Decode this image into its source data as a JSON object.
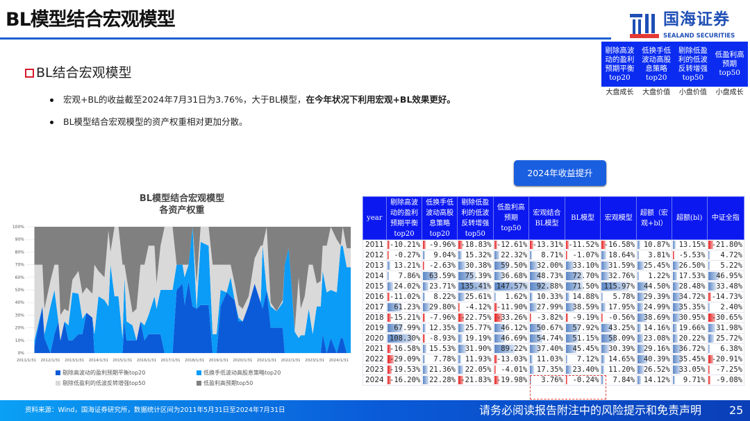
{
  "title": "BL模型结合宏观模型",
  "logo": {
    "cn": "国海证券",
    "en": "SEALAND SECURITIES"
  },
  "style_box": {
    "items": [
      "剔除高波动的盈利预期平衡top20",
      "低换手低波动高股息策略top20",
      "剔除低盈利的低波反转增强top50",
      "低盈利高预期top50"
    ],
    "labels": [
      "大盘成长",
      "大盘价值",
      "小盘价值",
      "小盘成长"
    ]
  },
  "section": "BL结合宏观模型",
  "bullets": {
    "b1_normal": "宏观+BL的收益截至2024年7月31日为3.76%，大于BL模型，",
    "b1_bold": "在今年状况下利用宏观+BL效果更好。",
    "b2": "BL模型结合宏观模型的资产权重相对更加分散。"
  },
  "boost_button": "2024年收益提升",
  "colors": {
    "dark_blue": "#0b5bd8",
    "light_blue": "#0a9cf7",
    "light_gray": "#d9d9d9",
    "gray": "#808080",
    "header_blue": "#0b18f0",
    "neg_red": "#e51c1c"
  },
  "table": {
    "headers": [
      "year",
      "剔除高波动的盈利预期平衡top20",
      "低换手低波动高股息策略top20",
      "剔除低盈利的低波反转增强top50",
      "低盈利高预期top50",
      "宏观结合BL模型",
      "BL模型",
      "宏观模型",
      "超额（宏观+bl）",
      "超额(bl)",
      "中证全指"
    ],
    "rows": [
      [
        "2011",
        -10.21,
        -9.96,
        -18.83,
        -12.61,
        -13.31,
        -11.52,
        -16.58,
        10.87,
        13.15,
        -21.8
      ],
      [
        "2012",
        -0.27,
        9.04,
        15.32,
        22.32,
        8.71,
        -1.07,
        18.64,
        3.81,
        -5.53,
        4.72
      ],
      [
        "2013",
        13.21,
        -2.63,
        30.38,
        59.5,
        32.0,
        33.1,
        31.59,
        25.45,
        26.5,
        5.22
      ],
      [
        "2014",
        7.86,
        63.59,
        75.39,
        36.68,
        48.73,
        72.7,
        32.76,
        1.22,
        17.53,
        46.95
      ],
      [
        "2015",
        24.02,
        23.71,
        135.41,
        147.57,
        92.88,
        71.5,
        115.97,
        44.5,
        28.48,
        33.48
      ],
      [
        "2016",
        -11.02,
        8.22,
        25.61,
        1.62,
        10.33,
        14.88,
        5.78,
        29.39,
        34.72,
        -14.73
      ],
      [
        "2017",
        61.23,
        29.8,
        -4.12,
        -11.9,
        27.99,
        38.59,
        17.95,
        24.99,
        35.35,
        2.4
      ],
      [
        "2018",
        -15.21,
        -7.96,
        -22.75,
        -33.26,
        -3.82,
        -9.19,
        -0.56,
        38.69,
        30.95,
        -30.65
      ],
      [
        "2019",
        67.99,
        12.35,
        25.77,
        46.12,
        50.67,
        57.92,
        43.25,
        14.16,
        19.66,
        31.98
      ],
      [
        "2020",
        108.3,
        -8.93,
        19.19,
        46.69,
        54.74,
        51.15,
        58.09,
        23.08,
        20.22,
        25.72
      ],
      [
        "2021",
        -16.58,
        15.53,
        31.9,
        89.22,
        37.4,
        45.45,
        30.39,
        29.16,
        36.72,
        6.38
      ],
      [
        "2022",
        -29.09,
        7.78,
        11.93,
        -13.03,
        11.03,
        7.12,
        14.65,
        40.39,
        35.45,
        -20.91
      ],
      [
        "2023",
        -19.53,
        21.36,
        22.05,
        -4.01,
        17.35,
        23.4,
        11.2,
        26.52,
        33.05,
        -7.25
      ],
      [
        "2024",
        -16.2,
        22.28,
        -21.83,
        -19.98,
        3.76,
        -0.24,
        7.84,
        14.12,
        9.71,
        -9.08
      ]
    ]
  },
  "chart_data": {
    "type": "area",
    "stacked": "percent",
    "title": "BL模型结合宏观模型",
    "subtitle": "各资产权重",
    "ylim": [
      0,
      100
    ],
    "yticks": [
      "0%",
      "10%",
      "20%",
      "30%",
      "40%",
      "50%",
      "60%",
      "70%",
      "80%",
      "90%",
      "100%"
    ],
    "xticks": [
      "2011/1/31",
      "2012/1/31",
      "2013/1/31",
      "2014/1/31",
      "2015/1/31",
      "2016/1/31",
      "2017/1/31",
      "2018/1/31",
      "2019/1/31",
      "2020/1/31",
      "2021/1/31",
      "2022/1/31",
      "2023/1/31",
      "2024/1/31"
    ],
    "legend_position": "bottom",
    "x": [
      "2011-05",
      "2011-09",
      "2011-10",
      "2012-01",
      "2012-03",
      "2012-05",
      "2012-06",
      "2012-08",
      "2012-10",
      "2012-12",
      "2013-03",
      "2013-05",
      "2013-07",
      "2013-10",
      "2013-11",
      "2014-01",
      "2014-04",
      "2014-06",
      "2014-07",
      "2014-09",
      "2014-11",
      "2015-01",
      "2015-02",
      "2015-03",
      "2015-06",
      "2015-08",
      "2015-10",
      "2015-12",
      "2016-02",
      "2016-05",
      "2016-06",
      "2016-08",
      "2016-10",
      "2017-01",
      "2017-02",
      "2017-04",
      "2017-07",
      "2017-08",
      "2017-10",
      "2017-12",
      "2018-02",
      "2018-04",
      "2018-08",
      "2018-10",
      "2018-12",
      "2019-02",
      "2019-05",
      "2019-07",
      "2019-09",
      "2019-11",
      "2020-01",
      "2020-04",
      "2020-07",
      "2020-10",
      "2020-11",
      "2021-01",
      "2021-03",
      "2021-06",
      "2021-09",
      "2021-10",
      "2021-12",
      "2022-01",
      "2022-03",
      "2022-05",
      "2022-06",
      "2022-08",
      "2022-10",
      "2022-12",
      "2023-02",
      "2023-04",
      "2023-05",
      "2023-07",
      "2023-09",
      "2023-12",
      "2024-02",
      "2024-03",
      "2024-05",
      "2024-07"
    ],
    "series": [
      {
        "name": "剔除高波动的盈利预期平衡top20",
        "color": "#0b5bd8",
        "values": [
          5,
          37,
          12,
          0,
          15,
          25,
          10,
          25,
          10,
          10,
          15,
          15,
          32,
          28,
          0,
          0,
          0,
          0,
          0,
          0,
          0,
          0,
          25,
          10,
          10,
          10,
          25,
          10,
          15,
          15,
          15,
          15,
          0,
          0,
          0,
          50,
          55,
          38,
          57,
          37,
          35,
          38,
          38,
          0,
          0,
          37,
          48,
          45,
          42,
          25,
          25,
          38,
          55,
          40,
          35,
          50,
          20,
          20,
          20,
          0,
          0,
          0,
          0,
          0,
          0,
          0,
          0,
          0,
          0,
          0,
          15,
          0,
          12,
          0,
          12,
          12,
          0,
          0
        ]
      },
      {
        "name": "低换手低波动高股息策略top20",
        "color": "#0a9cf7",
        "values": [
          5,
          0,
          3,
          37,
          35,
          0,
          0,
          0,
          12,
          38,
          32,
          12,
          0,
          0,
          15,
          45,
          42,
          37,
          70,
          45,
          45,
          12,
          35,
          15,
          12,
          0,
          0,
          12,
          15,
          30,
          20,
          35,
          50,
          50,
          50,
          20,
          15,
          22,
          13,
          63,
          0,
          50,
          47,
          15,
          15,
          13,
          0,
          15,
          0,
          3,
          0,
          0,
          0,
          0,
          50,
          0,
          17,
          13,
          20,
          70,
          83,
          63,
          17,
          12,
          14,
          14,
          35,
          15,
          37,
          37,
          50,
          48,
          38,
          48,
          73,
          73,
          68,
          68
        ]
      },
      {
        "name": "剔除低盈利的低波反转增强top50",
        "color": "#d9d9d9",
        "values": [
          60,
          33,
          20,
          20,
          20,
          45,
          20,
          10,
          11,
          10,
          18,
          20,
          20,
          19,
          55,
          20,
          18,
          60,
          10,
          55,
          55,
          58,
          10,
          35,
          10,
          25,
          45,
          48,
          55,
          40,
          20,
          35,
          50,
          50,
          50,
          0,
          0,
          10,
          0,
          0,
          20,
          12,
          15,
          55,
          55,
          20,
          22,
          10,
          13,
          10,
          10,
          7,
          20,
          45,
          0,
          50,
          3,
          0,
          2,
          0,
          0,
          0,
          1,
          48,
          21,
          31,
          35,
          55,
          18,
          20,
          20,
          37,
          50,
          42,
          0,
          15,
          15,
          15
        ]
      },
      {
        "name": "低盈利高预期top50",
        "color": "#808080",
        "values": [
          30,
          30,
          65,
          43,
          30,
          30,
          70,
          65,
          67,
          42,
          35,
          53,
          48,
          53,
          30,
          35,
          40,
          3,
          20,
          0,
          0,
          30,
          30,
          40,
          68,
          65,
          30,
          30,
          15,
          15,
          45,
          15,
          0,
          0,
          0,
          30,
          30,
          30,
          30,
          0,
          45,
          0,
          0,
          30,
          30,
          30,
          30,
          30,
          45,
          62,
          65,
          55,
          25,
          15,
          15,
          0,
          60,
          67,
          58,
          30,
          17,
          37,
          82,
          40,
          65,
          55,
          30,
          30,
          45,
          43,
          15,
          15,
          0,
          10,
          15,
          0,
          17,
          17
        ]
      }
    ]
  },
  "footer": {
    "source": "资料来源：Wind，国海证券研究所，数据统计区间为2011年5月31日至2024年7月31日",
    "disclaimer": "请务必阅读报告附注中的风险提示和免责声明",
    "page": "25"
  }
}
